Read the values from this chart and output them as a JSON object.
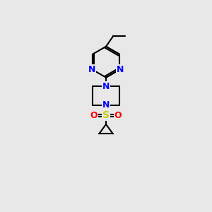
{
  "background_color": "#e8e8e8",
  "bond_color": "#000000",
  "nitrogen_color": "#0000ff",
  "sulfur_color": "#cccc00",
  "oxygen_color": "#ff0000",
  "line_width": 1.5,
  "fig_width": 3.0,
  "fig_height": 3.0,
  "dpi": 100,
  "xlim": [
    0,
    10
  ],
  "ylim": [
    0,
    13
  ]
}
